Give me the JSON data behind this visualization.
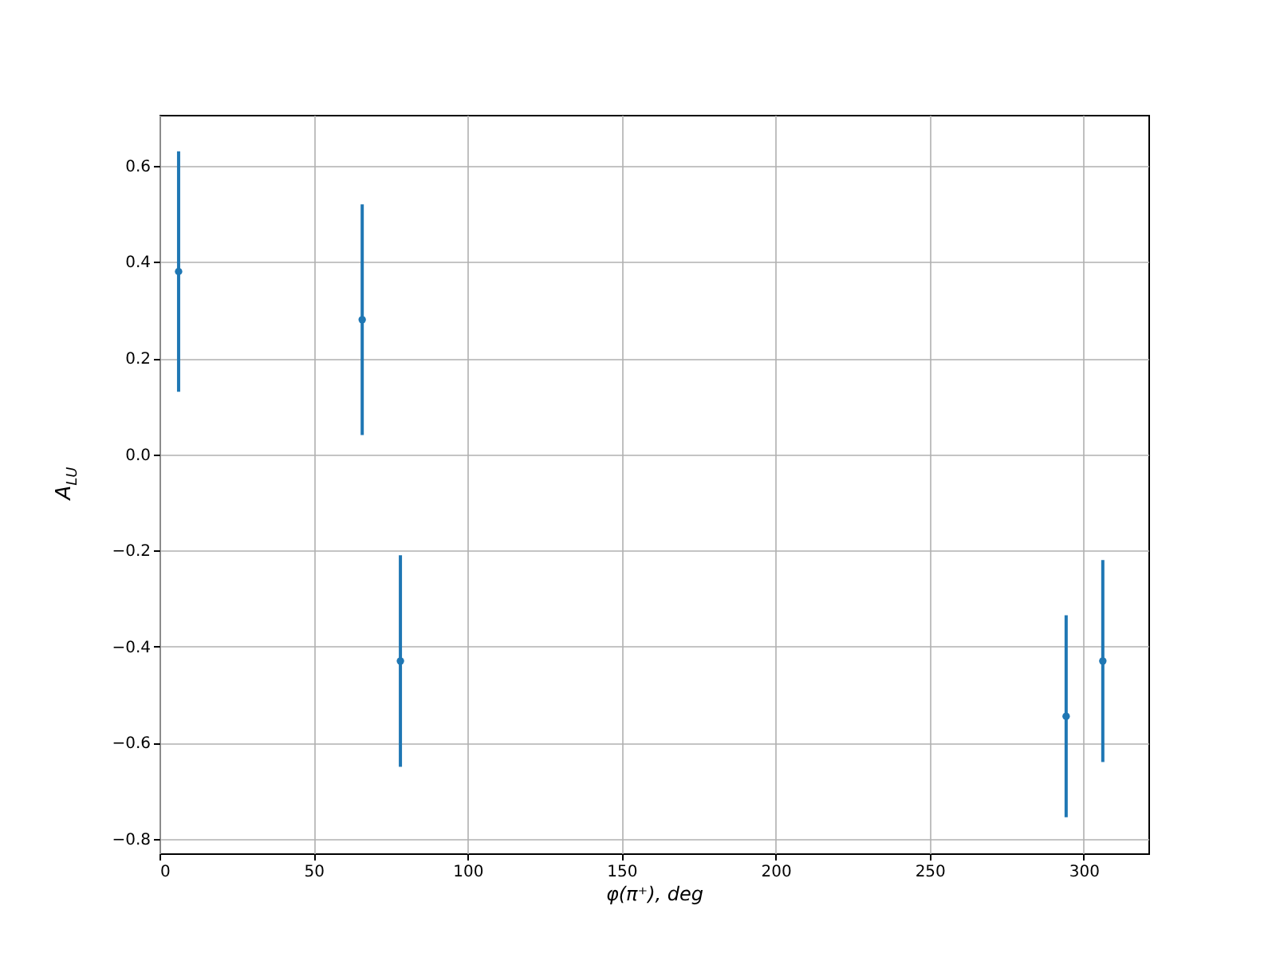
{
  "chart_data": {
    "type": "scatter",
    "xlabel": "φ(π⁺), deg",
    "ylabel": "A$_{LU}$",
    "x": [
      6.2,
      65.8,
      78.2,
      294.3,
      306.2
    ],
    "series": [
      {
        "color": "#1f77b4",
        "values": [
          0.38,
          0.28,
          -0.43,
          -0.545,
          -0.43
        ],
        "errors": [
          0.25,
          0.24,
          0.22,
          0.21,
          0.21
        ]
      }
    ],
    "xlim": [
      0,
      321
    ],
    "ylim": [
      -0.83,
      0.706
    ],
    "xticks": [
      0,
      50,
      100,
      150,
      200,
      250,
      300
    ],
    "yticks": [
      {
        "value": -0.8,
        "label": "−0.8"
      },
      {
        "value": -0.6,
        "label": "−0.6"
      },
      {
        "value": -0.4,
        "label": "−0.4"
      },
      {
        "value": -0.2,
        "label": "−0.2"
      },
      {
        "value": 0,
        "label": "0.0"
      },
      {
        "value": 0.2,
        "label": "0.2"
      },
      {
        "value": 0.4,
        "label": "0.4"
      },
      {
        "value": 0.6,
        "label": "0.6"
      }
    ],
    "grid": true,
    "marker": "circle"
  }
}
